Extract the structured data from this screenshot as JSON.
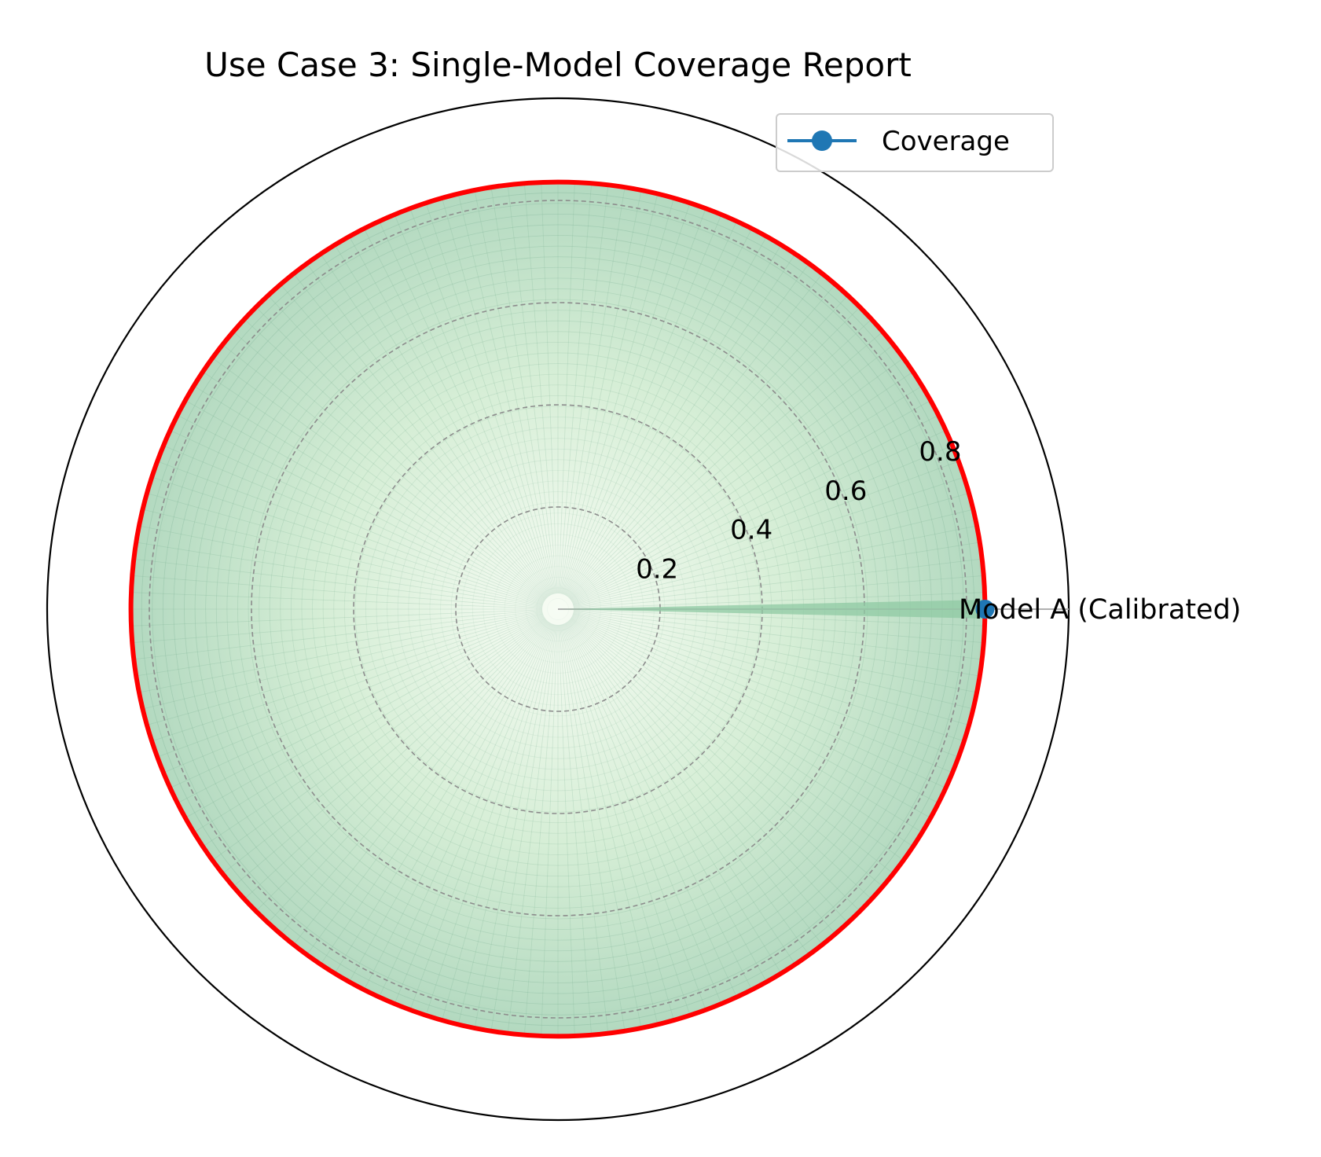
{
  "chart_data": {
    "type": "radar",
    "title": "Use Case 3: Single-Model Coverage Report",
    "categories": [
      "Model A (Calibrated)"
    ],
    "series": [
      {
        "name": "Coverage",
        "values": [
          0.836
        ]
      }
    ],
    "reference_level": 0.836,
    "rlim": [
      0,
      1.0
    ],
    "r_ticks": [
      0.2,
      0.4,
      0.6,
      0.8
    ],
    "r_tick_labels": [
      "0.2",
      "0.4",
      "0.6",
      "0.8"
    ],
    "grid": true,
    "legend_position": "upper-right",
    "colors": {
      "series": "#1f77b4",
      "reference": "#ff0000",
      "fill_inner": "#f4fbf0",
      "fill_outer": "#a9d6b8",
      "grid": "#8c8c8c",
      "spoke": "#b0b0b0",
      "frame": "#000000"
    }
  }
}
